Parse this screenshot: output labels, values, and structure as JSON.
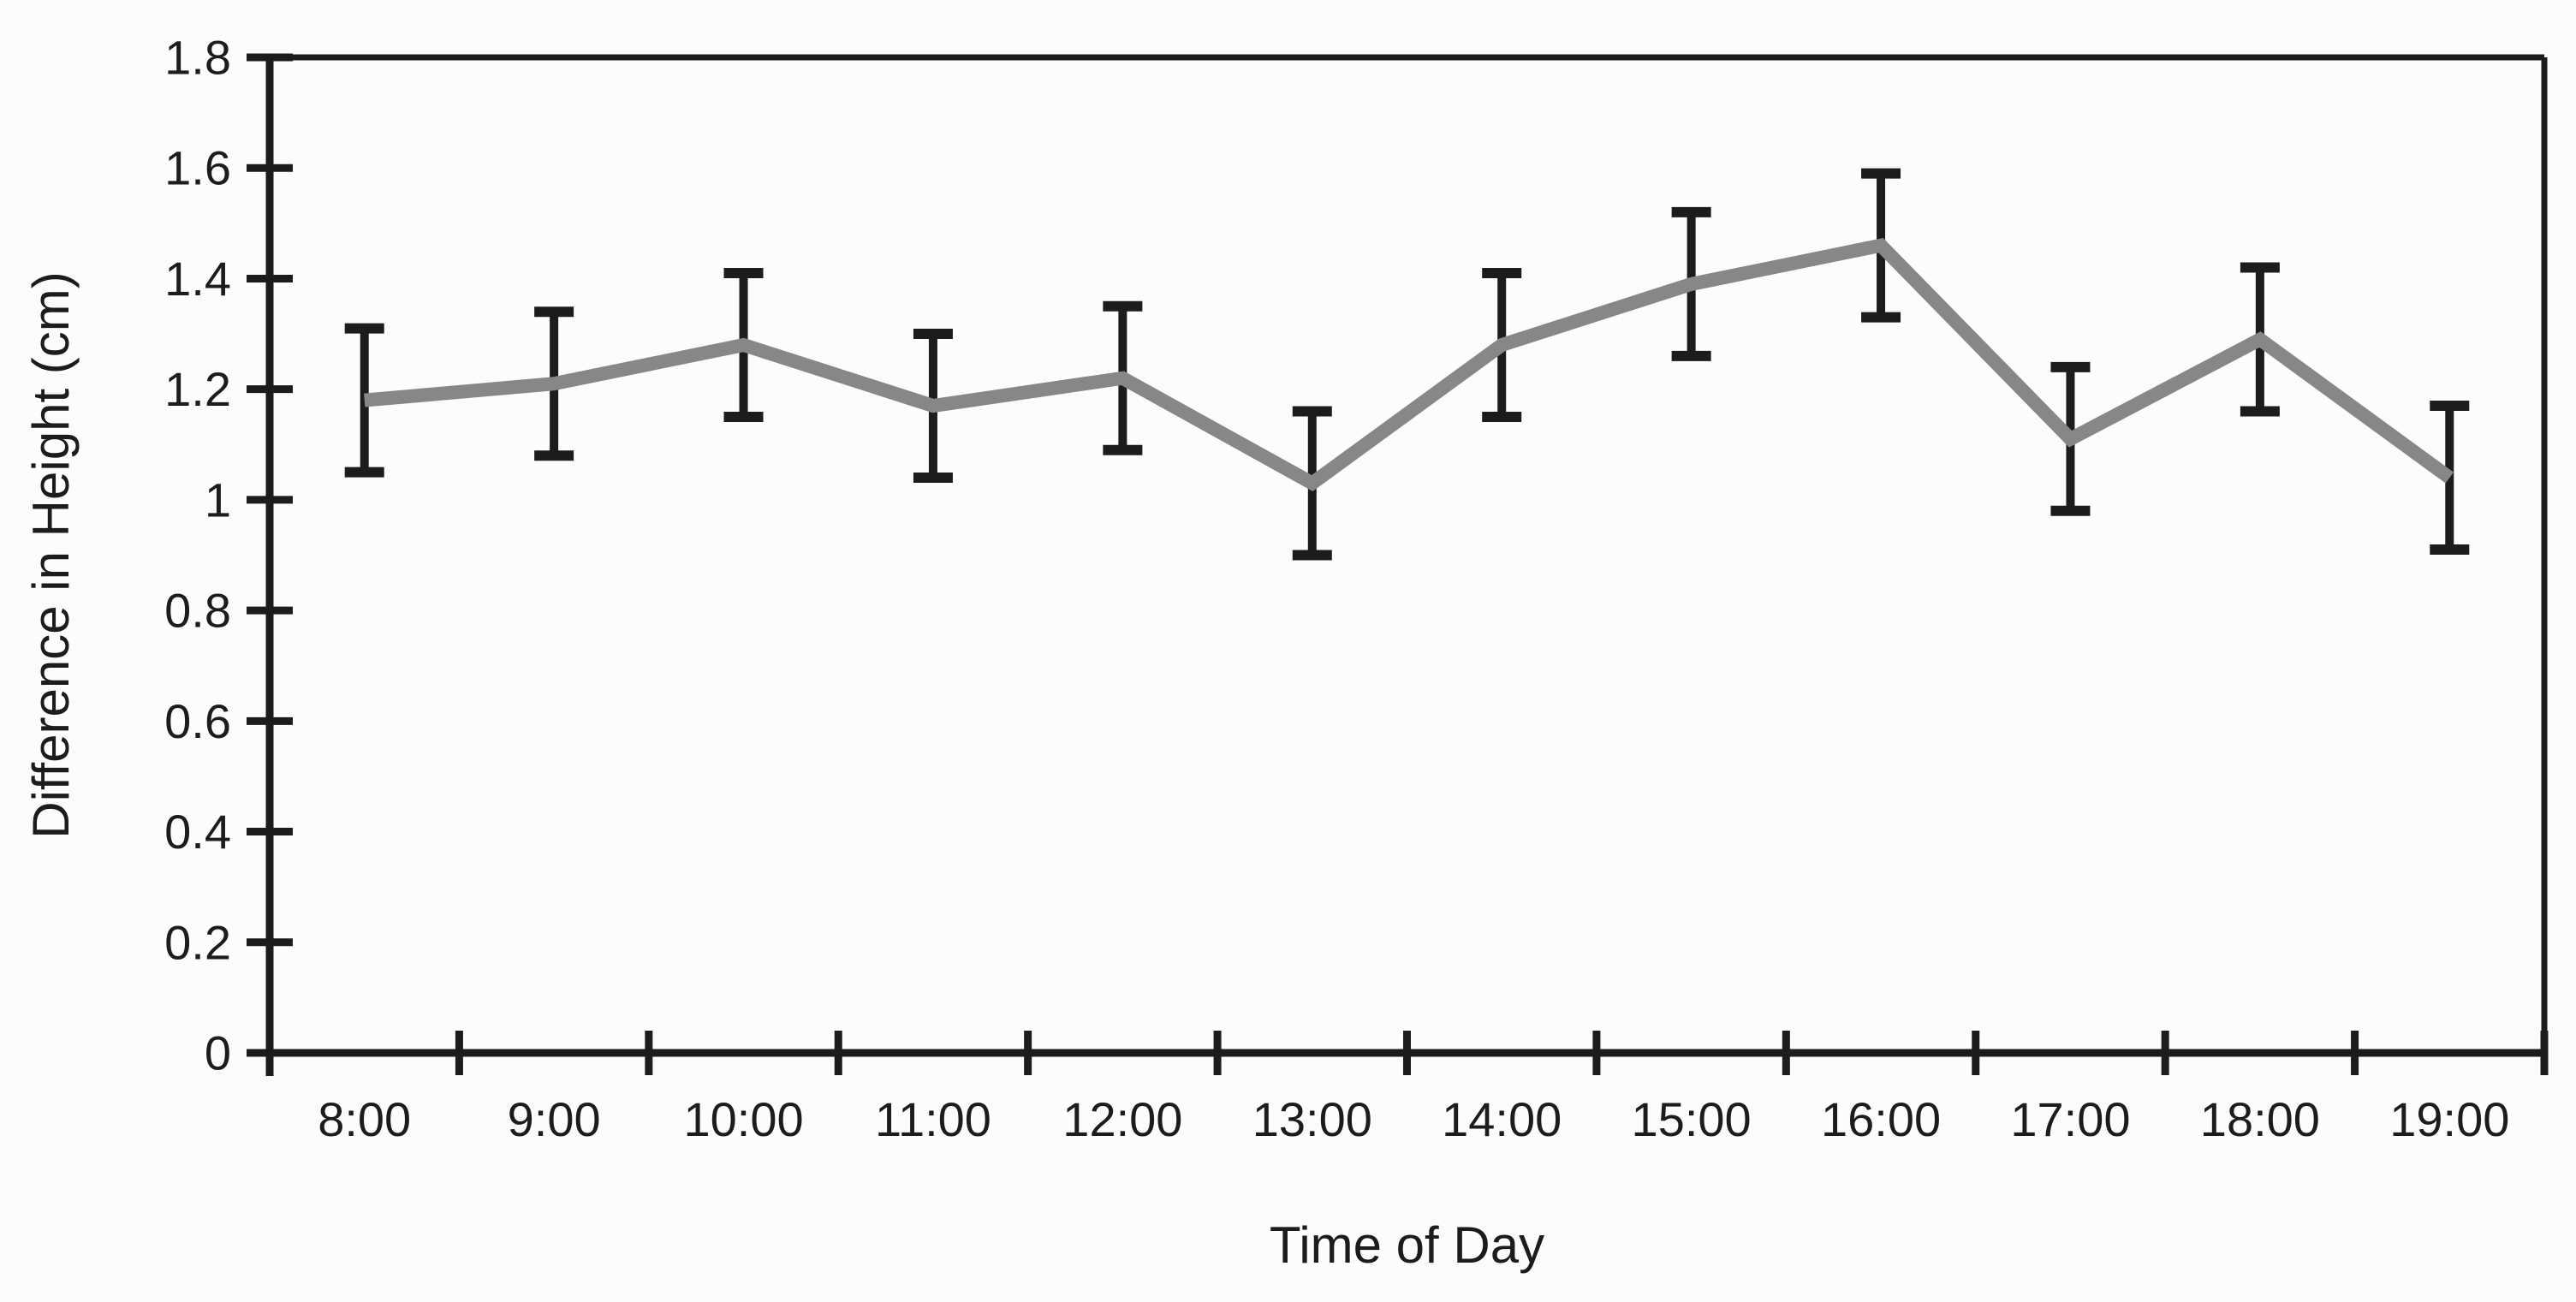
{
  "chart_data": {
    "type": "line",
    "title": "",
    "xlabel": "Time of Day",
    "ylabel": "Difference in Height (cm)",
    "categories": [
      "8:00",
      "9:00",
      "10:00",
      "11:00",
      "12:00",
      "13:00",
      "14:00",
      "15:00",
      "16:00",
      "17:00",
      "18:00",
      "19:00"
    ],
    "series": [
      {
        "name": "Difference in Height",
        "values": [
          1.18,
          1.21,
          1.28,
          1.17,
          1.22,
          1.03,
          1.28,
          1.39,
          1.46,
          1.11,
          1.29,
          1.04
        ],
        "error_bars": [
          0.13,
          0.13,
          0.13,
          0.13,
          0.13,
          0.13,
          0.13,
          0.13,
          0.13,
          0.13,
          0.13,
          0.13
        ]
      }
    ],
    "ylim": [
      0,
      1.8
    ],
    "ytick_step": 0.2,
    "ytick_labels": [
      "0",
      "0.2",
      "0.4",
      "0.6",
      "0.8",
      "1",
      "1.2",
      "1.4",
      "1.6",
      "1.8"
    ],
    "grid": false,
    "legend": "none",
    "marker": "none",
    "colors": {
      "line": "#878787",
      "error_bar": "#1c1c1c",
      "axis": "#1c1c1c",
      "text": "#1c1c1c",
      "background": "#fcfcfc"
    }
  }
}
